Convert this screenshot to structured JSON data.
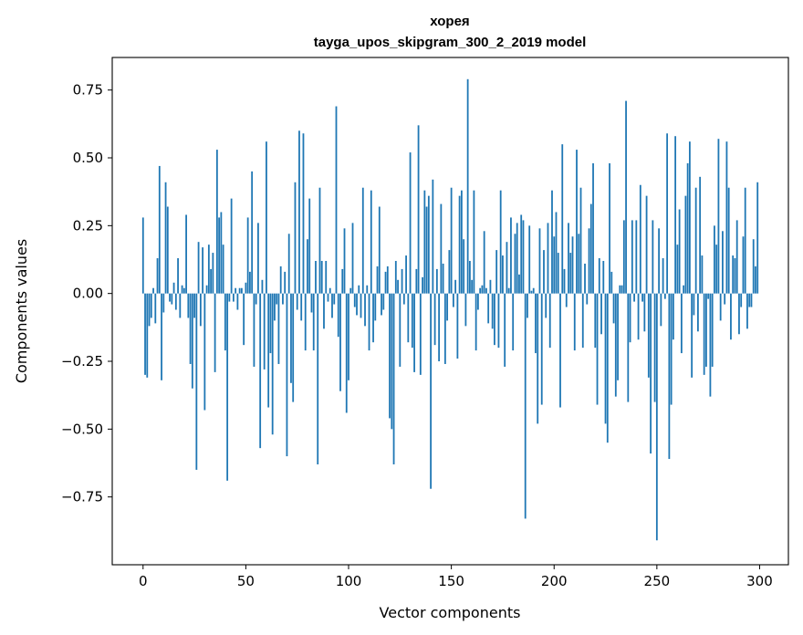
{
  "chart_data": {
    "type": "bar",
    "title": "хорея",
    "subtitle": "tayga_upos_skipgram_300_2_2019 model",
    "xlabel": "Vector components",
    "ylabel": "Components values",
    "xlim": [
      -15,
      314
    ],
    "ylim": [
      -1.0,
      0.87
    ],
    "xticks": [
      0,
      50,
      100,
      150,
      200,
      250,
      300
    ],
    "yticks": [
      -0.75,
      -0.5,
      -0.25,
      0.0,
      0.25,
      0.5,
      0.75
    ],
    "ytick_labels": [
      "−0.75",
      "−0.50",
      "−0.25",
      "0.00",
      "0.25",
      "0.50",
      "0.75"
    ],
    "grid": false,
    "bar_color": "#1f77b4",
    "values": [
      0.28,
      -0.3,
      -0.31,
      -0.12,
      -0.09,
      0.02,
      -0.11,
      0.13,
      0.47,
      -0.32,
      -0.07,
      0.41,
      0.32,
      -0.03,
      -0.04,
      0.04,
      -0.06,
      0.13,
      -0.09,
      0.03,
      0.02,
      0.29,
      -0.09,
      -0.26,
      -0.35,
      -0.09,
      -0.65,
      0.19,
      -0.12,
      0.17,
      -0.43,
      0.03,
      0.18,
      0.09,
      0.15,
      -0.29,
      0.53,
      0.28,
      0.3,
      0.18,
      -0.21,
      -0.69,
      -0.03,
      0.35,
      -0.03,
      0.02,
      -0.06,
      0.02,
      0.02,
      -0.19,
      0.04,
      0.28,
      0.08,
      0.45,
      -0.27,
      -0.04,
      0.26,
      -0.57,
      0.05,
      -0.28,
      0.56,
      -0.42,
      -0.22,
      -0.52,
      -0.1,
      -0.04,
      -0.26,
      0.1,
      -0.04,
      0.08,
      -0.6,
      0.22,
      -0.33,
      -0.4,
      0.41,
      -0.06,
      0.6,
      -0.1,
      0.59,
      -0.21,
      0.2,
      0.35,
      -0.07,
      -0.21,
      0.12,
      -0.63,
      0.39,
      0.12,
      -0.13,
      0.12,
      -0.03,
      0.02,
      -0.09,
      -0.04,
      0.69,
      -0.16,
      -0.36,
      0.09,
      0.24,
      -0.44,
      -0.32,
      0.02,
      0.26,
      -0.05,
      -0.08,
      0.03,
      -0.09,
      0.39,
      -0.12,
      0.03,
      -0.21,
      0.38,
      -0.18,
      -0.1,
      0.1,
      0.32,
      -0.08,
      -0.06,
      0.08,
      0.1,
      -0.46,
      -0.5,
      -0.63,
      0.12,
      0.05,
      -0.27,
      0.09,
      -0.04,
      0.14,
      -0.18,
      0.52,
      -0.2,
      -0.29,
      0.09,
      0.62,
      -0.3,
      0.06,
      0.38,
      0.32,
      0.36,
      -0.72,
      0.42,
      -0.19,
      0.09,
      -0.25,
      0.33,
      0.11,
      -0.26,
      -0.1,
      0.16,
      0.39,
      -0.05,
      0.05,
      -0.24,
      0.36,
      0.38,
      0.2,
      -0.12,
      0.79,
      0.12,
      0.05,
      0.38,
      -0.21,
      -0.06,
      0.02,
      0.03,
      0.23,
      0.02,
      -0.11,
      0.05,
      -0.13,
      -0.19,
      0.16,
      -0.2,
      0.38,
      0.14,
      -0.27,
      0.19,
      0.02,
      0.28,
      -0.21,
      0.22,
      0.26,
      0.07,
      0.29,
      0.27,
      -0.83,
      -0.09,
      0.25,
      0.01,
      0.02,
      -0.22,
      -0.48,
      0.24,
      -0.41,
      0.16,
      -0.09,
      0.26,
      -0.2,
      0.38,
      0.21,
      0.3,
      0.15,
      -0.42,
      0.55,
      0.09,
      -0.05,
      0.26,
      0.15,
      0.21,
      -0.21,
      0.53,
      0.22,
      0.39,
      -0.2,
      0.11,
      -0.04,
      0.24,
      0.33,
      0.48,
      -0.2,
      -0.41,
      0.13,
      -0.15,
      0.12,
      -0.48,
      -0.55,
      0.48,
      0.08,
      -0.11,
      -0.38,
      -0.32,
      0.03,
      0.03,
      0.27,
      0.71,
      -0.4,
      -0.18,
      0.27,
      -0.03,
      0.27,
      -0.17,
      0.4,
      -0.03,
      -0.14,
      0.36,
      -0.31,
      -0.59,
      0.27,
      -0.4,
      -0.91,
      0.24,
      -0.12,
      0.13,
      -0.02,
      0.59,
      -0.61,
      -0.41,
      -0.17,
      0.58,
      0.18,
      0.31,
      -0.22,
      0.03,
      0.36,
      0.48,
      0.56,
      -0.31,
      -0.08,
      0.39,
      -0.14,
      0.43,
      0.14,
      -0.3,
      -0.27,
      -0.02,
      -0.38,
      -0.27,
      0.25,
      0.18,
      0.57,
      -0.1,
      0.23,
      -0.04,
      0.56,
      0.39,
      -0.17,
      0.14,
      0.13,
      0.27,
      -0.15,
      -0.05,
      0.21,
      0.39,
      -0.13,
      -0.05,
      -0.05,
      0.2,
      0.1,
      0.41
    ]
  }
}
